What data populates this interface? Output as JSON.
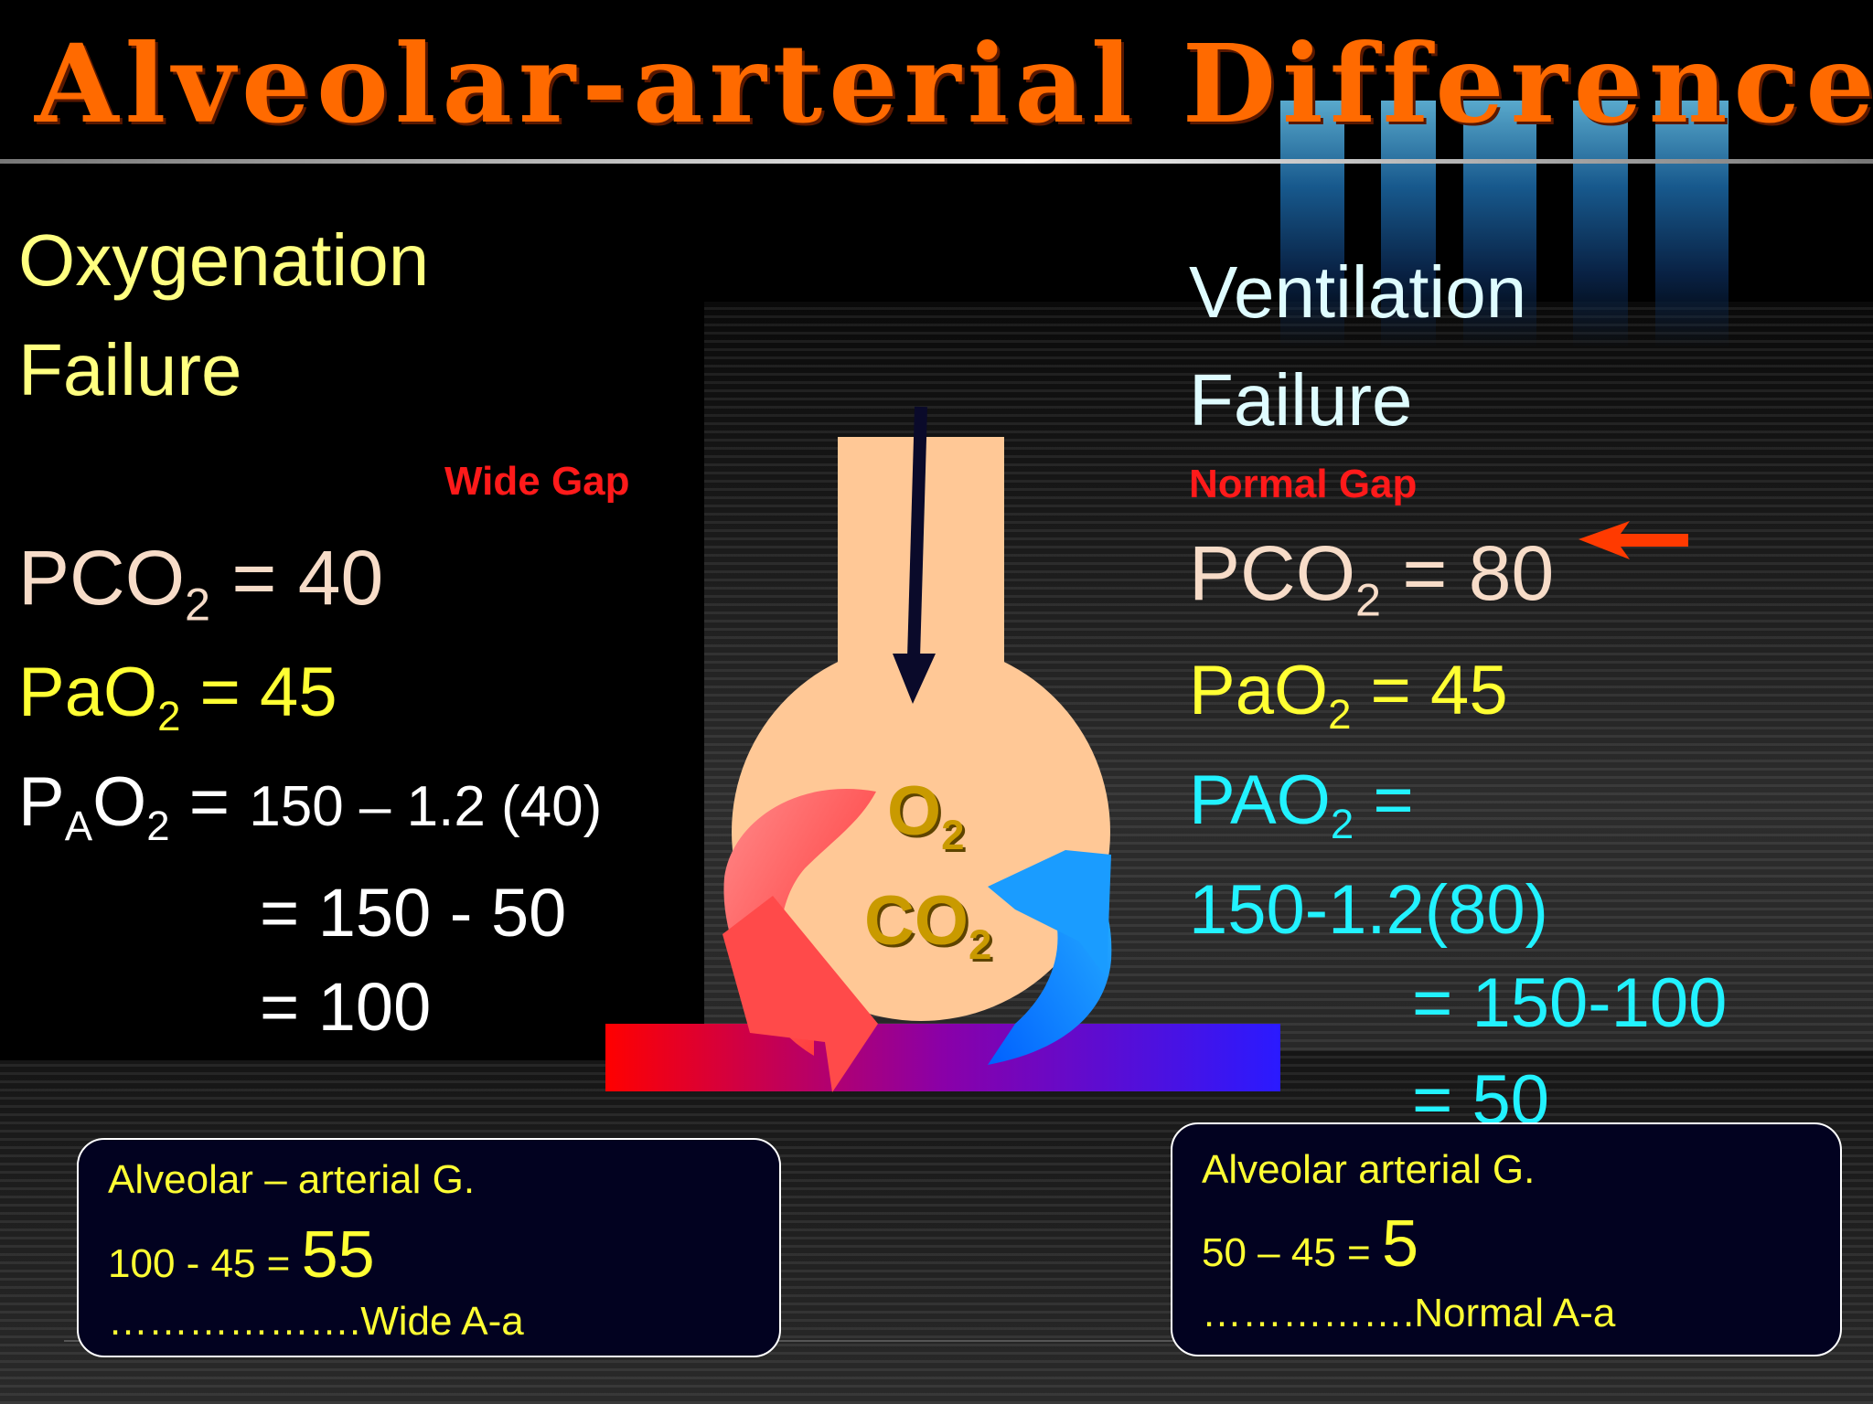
{
  "title": "Alveolar-arterial Difference",
  "left": {
    "heading_line1": "Oxygenation",
    "heading_line2": "Failure",
    "gap_label": "Wide Gap",
    "pco2": {
      "prefix": "PCO",
      "sub": "2",
      "rest": " = 40"
    },
    "pao2": {
      "prefix": "PaO",
      "sub": "2",
      "rest": " = 45"
    },
    "p_alv": {
      "p": "P",
      "sub_a": "A",
      "o": "O",
      "sub_2": "2",
      "eq": " = ",
      "expr": "150 – 1.2 (40)"
    },
    "calc_line1": "= 150 - 50",
    "calc_line2": "= 100",
    "box": {
      "line1": "Alveolar – arterial G.",
      "calc": "100 - 45 = ",
      "result": "55",
      "line3": "……………….Wide A-a"
    }
  },
  "right": {
    "heading_line1": "Ventilation",
    "heading_line2": "Failure",
    "gap_label": "Normal Gap",
    "pco2": {
      "prefix": "PCO",
      "sub": "2",
      "rest": " = 80"
    },
    "pao2": {
      "prefix": "PaO",
      "sub": "2",
      "rest": " = 45"
    },
    "p_alv": {
      "prefix": "PAO",
      "sub": "2",
      "rest": " ="
    },
    "expr": "150-1.2(80)",
    "calc_line1": "= 150-100",
    "calc_line2": "= 50",
    "box": {
      "line1": "Alveolar arterial G.",
      "calc": "50 – 45 = ",
      "result": "5",
      "line3": "…………….Normal A-a"
    }
  },
  "diagram": {
    "o2": {
      "main": "O",
      "sub": "2"
    },
    "co2": {
      "main": "CO",
      "sub": "2"
    }
  },
  "colors": {
    "title": "#ff6a00",
    "alveolus": "#ffc896",
    "arrow_red": "#ff3b3b",
    "arrow_blue": "#0a8cff",
    "gap_label": "#ff1a1a"
  }
}
